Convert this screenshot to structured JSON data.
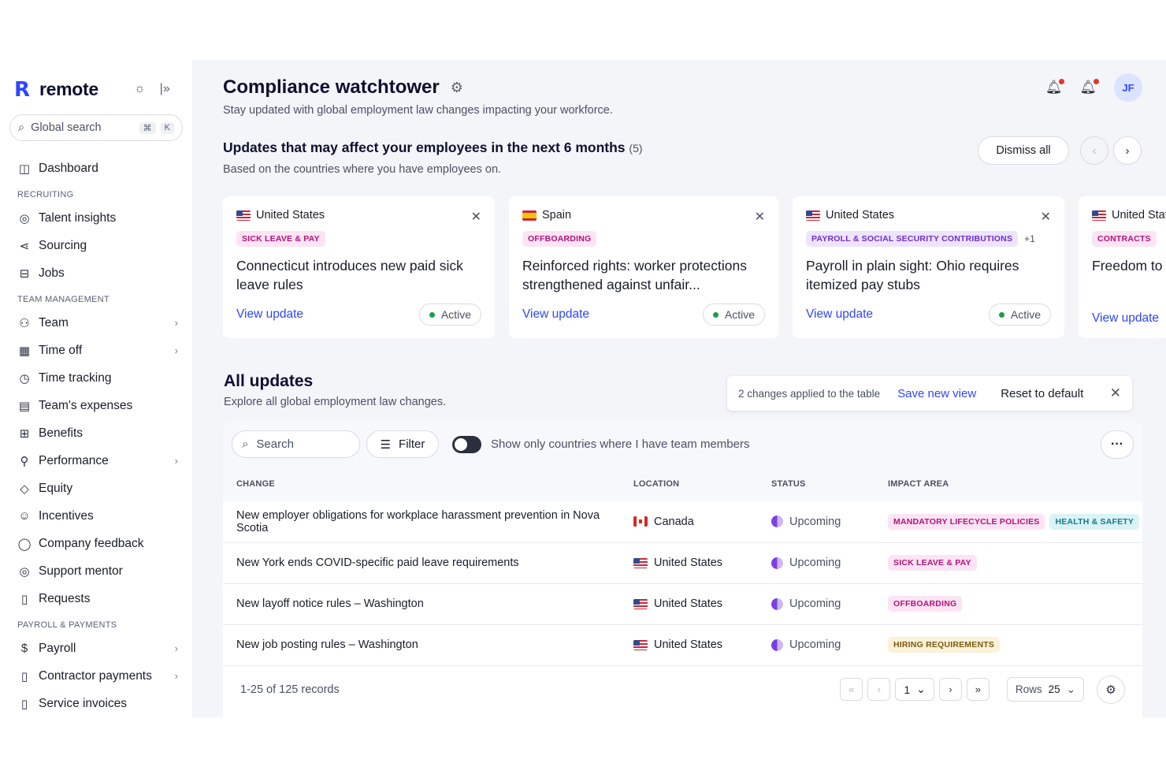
{
  "brand": {
    "logo": "R",
    "name": "remote",
    "theme_icon": "sun-icon",
    "collapse_icon": "collapse-sidebar-icon"
  },
  "search": {
    "placeholder": "Global search",
    "kbd_cmd": "⌘",
    "kbd_key": "K"
  },
  "sidebar": {
    "dashboard": "Dashboard",
    "sections": [
      {
        "title": "RECRUITING",
        "items": [
          {
            "label": "Talent insights",
            "icon": "compass-icon",
            "chevron": false
          },
          {
            "label": "Sourcing",
            "icon": "share-icon",
            "chevron": false
          },
          {
            "label": "Jobs",
            "icon": "briefcase-icon",
            "chevron": false
          }
        ]
      },
      {
        "title": "TEAM MANAGEMENT",
        "items": [
          {
            "label": "Team",
            "icon": "users-icon",
            "chevron": true
          },
          {
            "label": "Time off",
            "icon": "calendar-icon",
            "chevron": true
          },
          {
            "label": "Time tracking",
            "icon": "clock-icon",
            "chevron": false
          },
          {
            "label": "Team's expenses",
            "icon": "receipt-icon",
            "chevron": false
          },
          {
            "label": "Benefits",
            "icon": "gift-icon",
            "chevron": false
          },
          {
            "label": "Performance",
            "icon": "performance-icon",
            "chevron": true
          },
          {
            "label": "Equity",
            "icon": "diamond-icon",
            "chevron": false
          },
          {
            "label": "Incentives",
            "icon": "smile-icon",
            "chevron": false
          },
          {
            "label": "Company feedback",
            "icon": "chat-icon",
            "chevron": false
          },
          {
            "label": "Support mentor",
            "icon": "support-icon",
            "chevron": false
          },
          {
            "label": "Requests",
            "icon": "document-icon",
            "chevron": false
          }
        ]
      },
      {
        "title": "PAYROLL & PAYMENTS",
        "items": [
          {
            "label": "Payroll",
            "icon": "dollar-icon",
            "chevron": true
          },
          {
            "label": "Contractor payments",
            "icon": "invoice-icon",
            "chevron": true
          },
          {
            "label": "Service invoices",
            "icon": "file-icon",
            "chevron": false
          }
        ]
      }
    ]
  },
  "header": {
    "title": "Compliance watchtower",
    "subtitle": "Stay updated with global employment law changes impacting your workforce.",
    "avatar": "JF"
  },
  "updates": {
    "title": "Updates that may affect your employees in the next 6 months",
    "count": "(5)",
    "subtitle": "Based on the countries where you have employees on.",
    "dismiss_label": "Dismiss all",
    "cards": [
      {
        "flag": "us",
        "country": "United States",
        "tags": [
          {
            "label": "SICK LEAVE & PAY",
            "color": "pink"
          }
        ],
        "extra": "",
        "headline": "Connecticut introduces new paid sick leave rules",
        "link": "View update",
        "status": "Active"
      },
      {
        "flag": "es",
        "country": "Spain",
        "tags": [
          {
            "label": "OFFBOARDING",
            "color": "pink"
          }
        ],
        "extra": "",
        "headline": "Reinforced rights: worker protections strengthened against unfair...",
        "link": "View update",
        "status": "Active"
      },
      {
        "flag": "us",
        "country": "United States",
        "tags": [
          {
            "label": "PAYROLL & SOCIAL SECURITY CONTRIBUTIONS",
            "color": "purple"
          }
        ],
        "extra": "+1",
        "headline": "Payroll in plain sight: Ohio requires itemized pay stubs",
        "link": "View update",
        "status": "Active"
      },
      {
        "flag": "us",
        "country": "United Stat",
        "tags": [
          {
            "label": "CONTRACTS",
            "color": "pink"
          }
        ],
        "extra": "",
        "headline": "Freedom to w non-compet",
        "link": "View update",
        "status": ""
      }
    ]
  },
  "all_updates": {
    "title": "All updates",
    "subtitle": "Explore all global employment law changes.",
    "changes_text": "2 changes applied to the table",
    "save_view": "Save new view",
    "reset": "Reset to default",
    "search_placeholder": "Search",
    "filter_label": "Filter",
    "toggle_label": "Show only countries where I have team members",
    "columns": [
      "CHANGE",
      "LOCATION",
      "STATUS",
      "IMPACT AREA"
    ],
    "rows": [
      {
        "change": "New employer obligations for workplace harassment prevention in Nova Scotia",
        "flag": "ca",
        "location": "Canada",
        "status": "Upcoming",
        "impact": [
          {
            "label": "MANDATORY LIFECYCLE POLICIES",
            "color": "pink"
          },
          {
            "label": "HEALTH & SAFETY",
            "color": "teal"
          }
        ]
      },
      {
        "change": "New York ends COVID-specific paid leave requirements",
        "flag": "us",
        "location": "United States",
        "status": "Upcoming",
        "impact": [
          {
            "label": "SICK LEAVE & PAY",
            "color": "pink"
          }
        ]
      },
      {
        "change": "New layoff notice rules – Washington",
        "flag": "us",
        "location": "United States",
        "status": "Upcoming",
        "impact": [
          {
            "label": "OFFBOARDING",
            "color": "pink"
          }
        ]
      },
      {
        "change": "New job posting rules – Washington",
        "flag": "us",
        "location": "United States",
        "status": "Upcoming",
        "impact": [
          {
            "label": "HIRING REQUIREMENTS",
            "color": "yellow"
          }
        ]
      }
    ],
    "records": "1-25 of 125 records",
    "page": "1",
    "rows_label": "Rows",
    "rows_value": "25"
  }
}
